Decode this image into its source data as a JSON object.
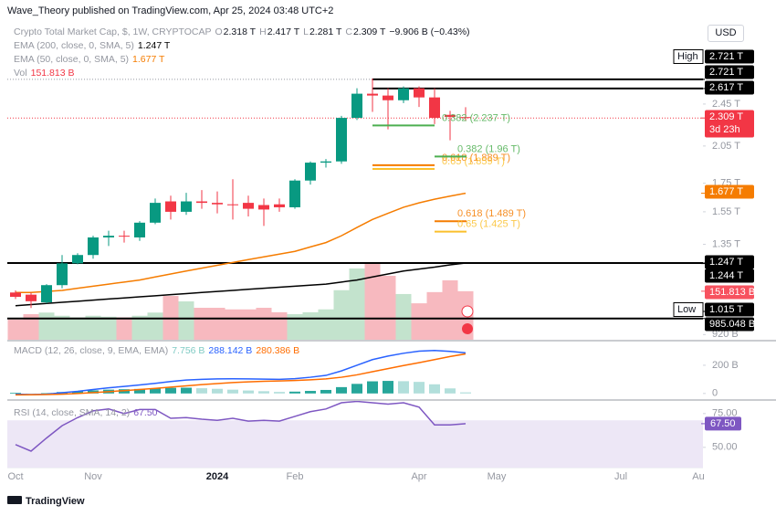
{
  "header": {
    "publisher": "Wave_Theory published on TradingView.com, Apr 25, 2024 03:48 UTC+2",
    "currency": "USD",
    "footer": "TradingView"
  },
  "legend": {
    "symbol": "Crypto Total Market Cap, $, 1W, CRYPTOCAP",
    "ohlc": [
      [
        "O",
        "2.318 T"
      ],
      [
        "H",
        "2.417 T"
      ],
      [
        "L",
        "2.281 T"
      ],
      [
        "C",
        "2.309 T"
      ]
    ],
    "change": "−9.906 B (−0.43%)",
    "indicators": [
      {
        "name": "EMA (200, close, 0, SMA, 5)",
        "value": "1.247 T",
        "color": "#000000"
      },
      {
        "name": "EMA (50, close, 0, SMA, 5)",
        "value": "1.677 T",
        "color": "#f57c00"
      },
      {
        "name": "Vol",
        "value": "151.813 B",
        "color": "#f23645"
      }
    ],
    "macd": {
      "name": "MACD (12, 26, close, 9, EMA, EMA)",
      "values": [
        {
          "value": "7.756 B",
          "color": "#80cbc4"
        },
        {
          "value": "288.142 B",
          "color": "#2962ff"
        },
        {
          "value": "280.386 B",
          "color": "#ff6d00"
        }
      ]
    },
    "rsi": {
      "name": "RSI (14, close, SMA, 14, 2)",
      "value": "67.50",
      "color": "#7e57c2"
    }
  },
  "chart_data": [
    {
      "type": "candlestick",
      "yscale": "log",
      "up_color": "#089981",
      "down_color": "#f23645",
      "categories": [
        "Oct",
        null,
        null,
        null,
        null,
        "Nov",
        null,
        null,
        null,
        null,
        null,
        null,
        null,
        "2024",
        null,
        null,
        null,
        null,
        "Feb",
        null,
        null,
        null,
        null,
        null,
        null,
        null,
        "Apr",
        null,
        null,
        null,
        null,
        "May",
        null,
        null,
        null,
        null,
        null,
        null,
        null,
        "Jul",
        null,
        null,
        null,
        null,
        "Au"
      ],
      "open": [
        1.1,
        1.09,
        1.055,
        1.135,
        1.245,
        1.29,
        1.39,
        1.4,
        1.39,
        1.48,
        1.62,
        1.55,
        1.62,
        1.61,
        1.6,
        1.61,
        1.595,
        1.6,
        1.58,
        1.77,
        1.91,
        1.92,
        2.31,
        2.56,
        2.54,
        2.49,
        2.62,
        2.52,
        2.34,
        2.318,
        null,
        null,
        null,
        null,
        null,
        null,
        null,
        null,
        null,
        null,
        null,
        null,
        null,
        null,
        null
      ],
      "high": [
        1.11,
        1.1,
        1.14,
        1.29,
        1.3,
        1.4,
        1.43,
        1.43,
        1.49,
        1.64,
        1.66,
        1.68,
        1.7,
        1.69,
        1.78,
        1.66,
        1.64,
        1.64,
        1.78,
        1.92,
        1.94,
        2.33,
        2.62,
        2.73,
        2.62,
        2.64,
        2.64,
        2.62,
        2.38,
        2.417,
        null,
        null,
        null,
        null,
        null,
        null,
        null,
        null,
        null,
        null,
        null,
        null,
        null,
        null,
        null
      ],
      "low": [
        1.07,
        1.03,
        1.05,
        1.12,
        1.24,
        1.27,
        1.34,
        1.36,
        1.37,
        1.47,
        1.5,
        1.53,
        1.57,
        1.54,
        1.5,
        1.52,
        1.46,
        1.55,
        1.57,
        1.74,
        1.87,
        1.9,
        2.29,
        2.37,
        2.2,
        2.46,
        2.42,
        2.25,
        2.1,
        2.281,
        null,
        null,
        null,
        null,
        null,
        null,
        null,
        null,
        null,
        null,
        null,
        null,
        null,
        null,
        null
      ],
      "close": [
        1.08,
        1.06,
        1.135,
        1.245,
        1.29,
        1.39,
        1.4,
        1.395,
        1.48,
        1.61,
        1.55,
        1.62,
        1.61,
        1.6,
        1.595,
        1.57,
        1.565,
        1.58,
        1.77,
        1.91,
        1.92,
        2.31,
        2.56,
        2.54,
        2.49,
        2.62,
        2.52,
        2.31,
        2.32,
        2.309,
        null,
        null,
        null,
        null,
        null,
        null,
        null,
        null,
        null,
        null,
        null,
        null,
        null,
        null,
        null
      ],
      "series": [
        {
          "color": "#000000",
          "values": [
            1.04,
            1.045,
            1.05,
            1.055,
            1.06,
            1.065,
            1.07,
            1.075,
            1.08,
            1.085,
            1.09,
            1.095,
            1.1,
            1.105,
            1.11,
            1.115,
            1.12,
            1.125,
            1.13,
            1.135,
            1.14,
            1.15,
            1.16,
            1.175,
            1.19,
            1.205,
            1.215,
            1.225,
            1.237,
            1.247,
            null,
            null,
            null,
            null,
            null,
            null,
            null,
            null,
            null,
            null,
            null,
            null,
            null,
            null,
            null
          ]
        },
        {
          "color": "#f57c00",
          "values": [
            1.1,
            1.1,
            1.105,
            1.11,
            1.12,
            1.13,
            1.14,
            1.15,
            1.16,
            1.175,
            1.19,
            1.205,
            1.22,
            1.235,
            1.25,
            1.265,
            1.28,
            1.295,
            1.31,
            1.335,
            1.36,
            1.4,
            1.45,
            1.5,
            1.54,
            1.58,
            1.61,
            1.635,
            1.657,
            1.677,
            null,
            null,
            null,
            null,
            null,
            null,
            null,
            null,
            null,
            null,
            null,
            null,
            null,
            null,
            null
          ]
        }
      ],
      "volume": {
        "axis": "y2",
        "up_color": "#c3e3cd",
        "down_color": "#f7b9bf",
        "values": [
          63,
          80,
          85,
          75,
          70,
          75,
          72,
          70,
          75,
          85,
          137,
          120,
          100,
          100,
          95,
          95,
          100,
          86,
          80,
          86,
          95,
          155,
          223,
          240,
          200,
          143,
          114,
          149,
          186,
          151.813,
          null,
          null,
          null,
          null,
          null,
          null,
          null,
          null,
          null,
          null,
          null,
          null,
          null,
          null,
          null
        ]
      },
      "ylim": [
        0.9,
        3.5
      ],
      "y2lim": [
        0,
        1000
      ],
      "yticks": [
        {
          "value": 2.45,
          "label": "2.45 T"
        },
        {
          "value": 2.05,
          "label": "2.05 T"
        },
        {
          "value": 1.75,
          "label": "1.75 T"
        },
        {
          "value": 1.55,
          "label": "1.55 T"
        },
        {
          "value": 1.35,
          "label": "1.35 T"
        },
        {
          "value": 0.92,
          "label": "920 B"
        }
      ],
      "price_labels": [
        {
          "tag": "High",
          "value": 2.721,
          "label": "2.721 T",
          "color": "#000000"
        },
        {
          "value": 2.721,
          "label": "2.721 T",
          "color": "#000000"
        },
        {
          "value": 2.617,
          "label": "2.617 T",
          "color": "#000000"
        },
        {
          "value": 2.309,
          "label": "2.309 T",
          "countdown": "3d 23h",
          "color": "#f23645"
        },
        {
          "value": 1.677,
          "label": "1.677 T",
          "color": "#f57c00"
        },
        {
          "value": 1.247,
          "label": "1.247 T",
          "color": "#000000"
        },
        {
          "value": 1.244,
          "label": "1.244 T",
          "color": "#000000"
        },
        {
          "axis": "y2",
          "value": 151.813,
          "label": "151.813 B",
          "color": "#f7525f"
        },
        {
          "tag": "Low",
          "value": 1.015,
          "label": "1.015 T",
          "color": "#000000"
        },
        {
          "value": 0.985048,
          "label": "985.048 B",
          "color": "#000000"
        }
      ],
      "fib_levels": [
        {
          "value": 2.237,
          "label": "0.382 (2.237 T)",
          "color": "#4caf50"
        },
        {
          "value": 1.889,
          "label": "0.618 (1.889 T)",
          "color": "#f57c00"
        },
        {
          "value": 1.859,
          "label": "0.65 (1.859 T)",
          "color": "#fbc02d"
        },
        {
          "value": 1.96,
          "label": "0.382 (1.96 T)",
          "color": "#4caf50"
        },
        {
          "value": 1.489,
          "label": "0.618 (1.489 T)",
          "color": "#f57c00"
        },
        {
          "value": 1.425,
          "label": "0.65 (1.425 T)",
          "color": "#fbc02d"
        }
      ]
    },
    {
      "type": "macd",
      "ylim": [
        -40,
        355
      ],
      "yticks": [
        0,
        {
          "value": 200,
          "label": "200 B"
        }
      ],
      "series": [
        {
          "color": "#2962ff",
          "values": [
            -5,
            -8,
            -5,
            5,
            15,
            28,
            40,
            50,
            60,
            72,
            85,
            95,
            100,
            103,
            104,
            103,
            102,
            100,
            105,
            115,
            128,
            160,
            200,
            240,
            265,
            285,
            300,
            305,
            298,
            288.142
          ]
        },
        {
          "color": "#ff6d00",
          "values": [
            -10,
            -9,
            -8,
            -5,
            0,
            6,
            13,
            20,
            28,
            36,
            45,
            54,
            63,
            70,
            77,
            82,
            86,
            89,
            92,
            97,
            103,
            115,
            132,
            154,
            176,
            198,
            218,
            240,
            262,
            280.386
          ]
        }
      ],
      "histogram": {
        "rising_color": "#26a69a",
        "falling_color": "#b2dfdb",
        "values": [
          5,
          1,
          3,
          10,
          15,
          22,
          27,
          30,
          32,
          36,
          40,
          41,
          37,
          33,
          27,
          21,
          16,
          11,
          13,
          18,
          25,
          45,
          68,
          86,
          89,
          87,
          82,
          65,
          36,
          7.756
        ]
      }
    },
    {
      "type": "line",
      "ylim": [
        35,
        83
      ],
      "yticks": [
        {
          "value": 75,
          "label": "75.00"
        },
        {
          "value": 50,
          "label": "50.00"
        }
      ],
      "band": [
        30,
        70
      ],
      "band_color": "#ede7f6",
      "series": [
        {
          "color": "#7e57c2",
          "values": [
            52,
            47.2,
            56.9,
            66,
            72,
            77,
            78.4,
            75,
            78,
            78,
            71.5,
            72,
            70.8,
            70,
            71.5,
            69.4,
            70,
            69.4,
            72.9,
            76.4,
            78.4,
            83,
            84,
            83,
            82,
            83,
            79.8,
            66.6,
            66.6,
            67.5
          ]
        }
      ],
      "value_label": {
        "value": 67.5,
        "label": "67.50",
        "color": "#7e57c2"
      }
    }
  ]
}
